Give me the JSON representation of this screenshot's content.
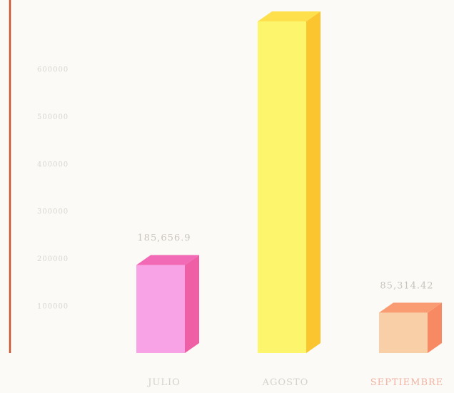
{
  "chart_data": {
    "type": "bar",
    "style": "3d-column",
    "categories": [
      "JULIO",
      "AGOSTO",
      "SEPTIEMBRE"
    ],
    "values": [
      185656.9,
      700000,
      85314.42
    ],
    "data_labels": [
      "185,656.9",
      "",
      "85,314.42"
    ],
    "ylim": [
      0,
      700000
    ],
    "y_ticks": [
      100000,
      200000,
      300000,
      400000,
      500000,
      600000
    ],
    "grid": false,
    "legend": "none",
    "colors": {
      "bars": [
        {
          "front": "#f7a3e6",
          "side": "#ef5fa6",
          "top": "#f26ab6"
        },
        {
          "front": "#fdf56c",
          "side": "#fbc52f",
          "top": "#fde04c"
        },
        {
          "front": "#f9cfa8",
          "side": "#f88a63",
          "top": "#fa9c73"
        }
      ],
      "axis": "#d2532a",
      "category_labels": [
        "#d6d2ca",
        "#d6d2ca",
        "#f2b3a2"
      ]
    }
  }
}
